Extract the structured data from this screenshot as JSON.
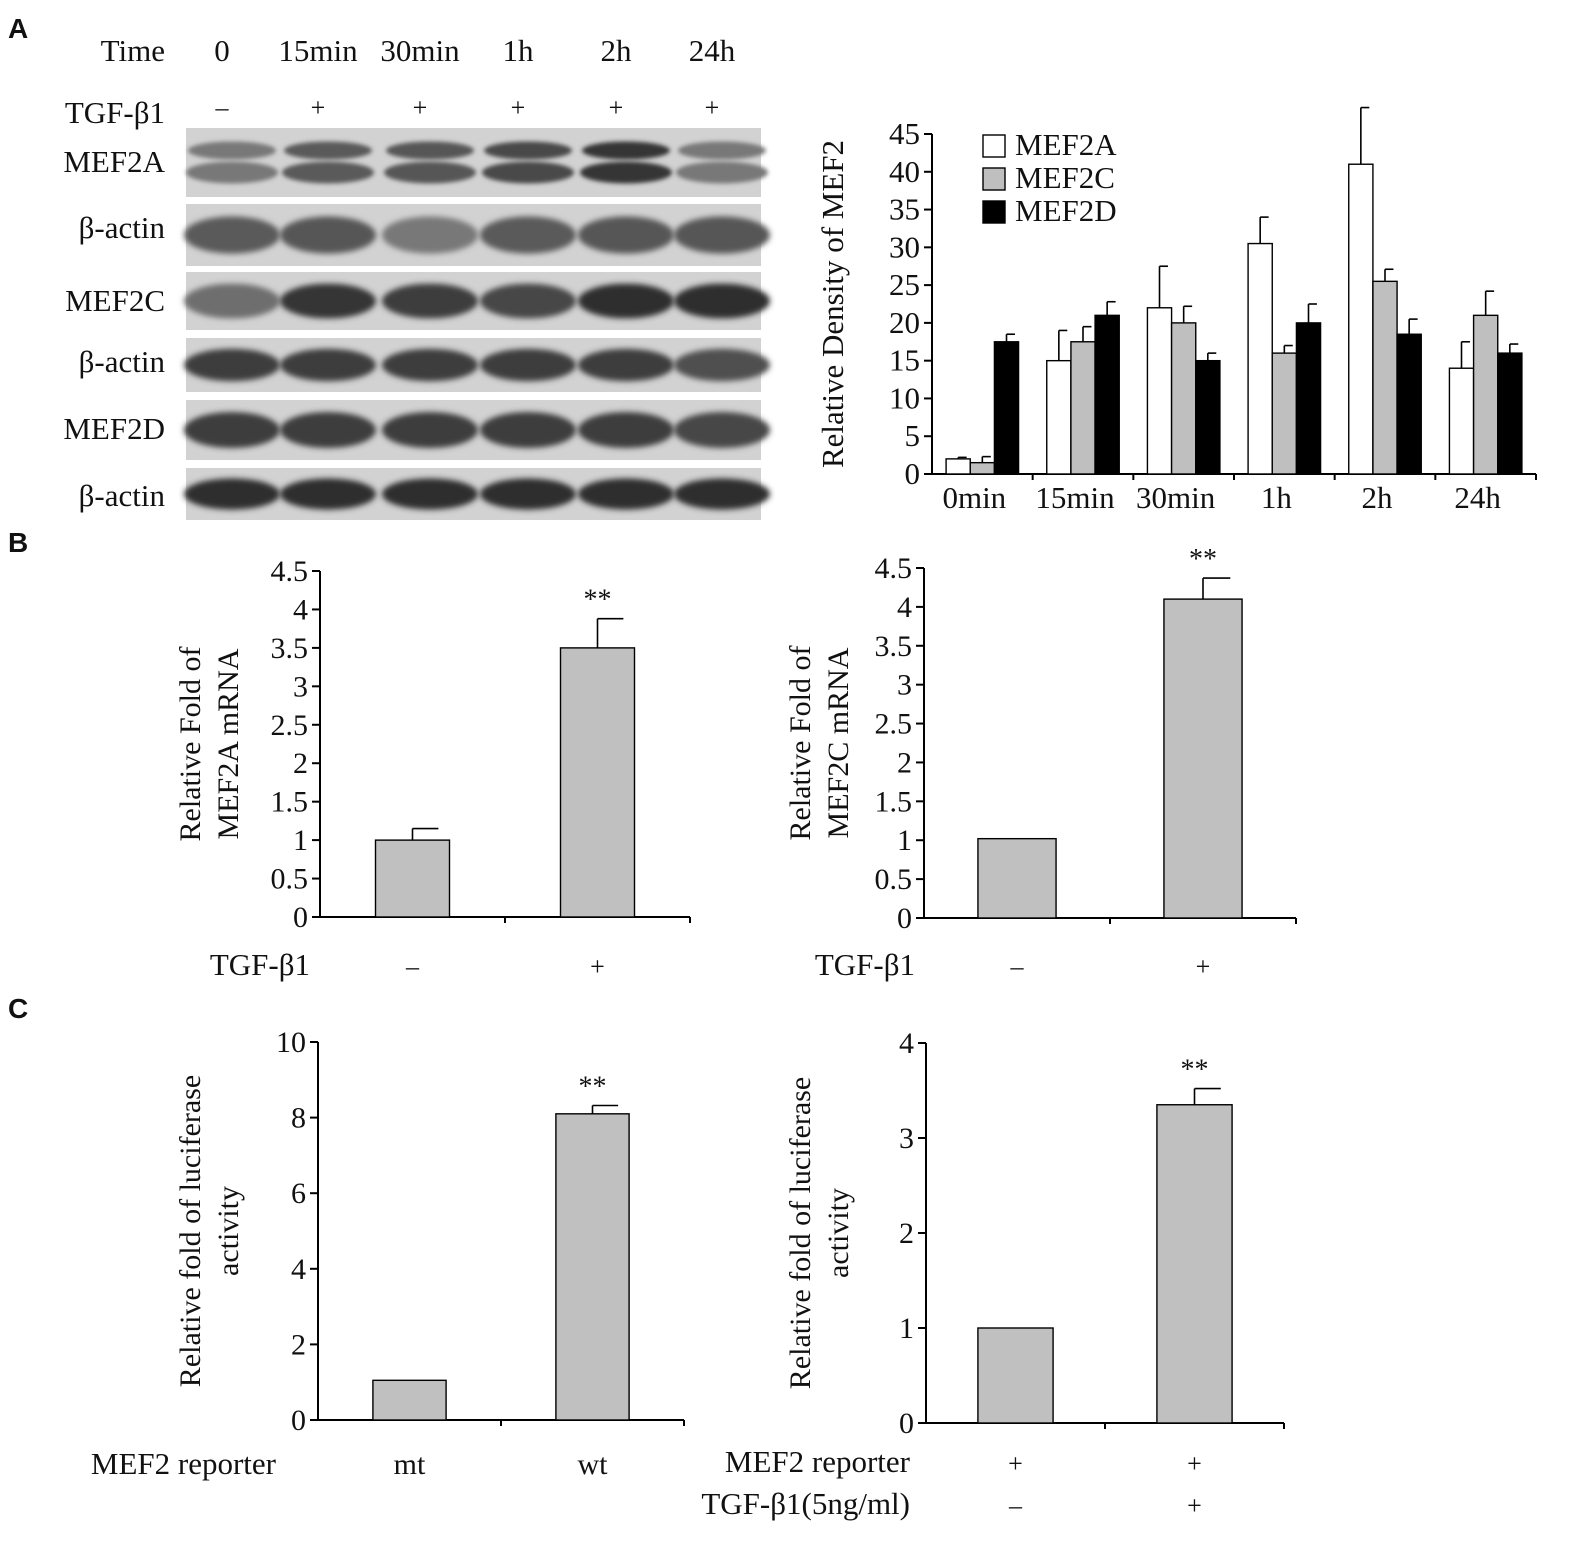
{
  "panels": [
    {
      "id": "A",
      "label": "A"
    },
    {
      "id": "B",
      "label": "B"
    },
    {
      "id": "C",
      "label": "C"
    }
  ],
  "western_blot": {
    "time_label": "Time",
    "treatment_label": "TGF-β1",
    "timepoints": [
      "0",
      "15min",
      "30min",
      "1h",
      "2h",
      "24h"
    ],
    "treatment_signs": [
      "–",
      "+",
      "+",
      "+",
      "+",
      "+"
    ],
    "rows": [
      {
        "label": "MEF2A",
        "bands": "double",
        "intensity": [
          0.55,
          0.7,
          0.72,
          0.78,
          0.88,
          0.55
        ]
      },
      {
        "label": "β-actin",
        "bands": "single",
        "intensity": [
          0.7,
          0.72,
          0.55,
          0.7,
          0.72,
          0.72
        ]
      },
      {
        "label": "MEF2C",
        "bands": "single",
        "intensity": [
          0.6,
          0.88,
          0.85,
          0.8,
          0.92,
          0.92
        ]
      },
      {
        "label": "β-actin",
        "bands": "single",
        "intensity": [
          0.85,
          0.85,
          0.85,
          0.85,
          0.85,
          0.75
        ]
      },
      {
        "label": "MEF2D",
        "bands": "single",
        "intensity": [
          0.85,
          0.85,
          0.85,
          0.85,
          0.85,
          0.8
        ]
      },
      {
        "label": "β-actin",
        "bands": "single",
        "intensity": [
          0.92,
          0.92,
          0.92,
          0.92,
          0.92,
          0.92
        ]
      }
    ]
  },
  "chart_data": [
    {
      "id": "A-right",
      "type": "bar",
      "title": "",
      "xlabel": "",
      "ylabel": "Relative Density  of MEF2",
      "categories": [
        "0min",
        "15min",
        "30min",
        "1h",
        "2h",
        "24h"
      ],
      "ylim": [
        0,
        45
      ],
      "yticks": [
        "0",
        "5",
        "10",
        "15",
        "20",
        "25",
        "30",
        "35",
        "40",
        "45"
      ],
      "legend_position": "top-left",
      "series": [
        {
          "name": "MEF2A",
          "color": "#ffffff",
          "values": [
            2,
            15,
            22,
            30.5,
            41,
            14
          ],
          "errors": [
            0.2,
            4,
            5.5,
            3.5,
            7.5,
            3.5
          ]
        },
        {
          "name": "MEF2C",
          "color": "#bfbfbf",
          "values": [
            1.5,
            17.5,
            20,
            16,
            25.5,
            21
          ],
          "errors": [
            0.8,
            2,
            2.2,
            1,
            1.6,
            3.2
          ]
        },
        {
          "name": "MEF2D",
          "color": "#000000",
          "values": [
            17.5,
            21,
            15,
            20,
            18.5,
            16
          ],
          "errors": [
            1,
            1.8,
            1,
            2.5,
            2,
            1.2
          ]
        }
      ]
    },
    {
      "id": "B-left",
      "type": "bar",
      "title": "",
      "xlabel": "",
      "ylabel": [
        "Relative Fold of",
        "MEF2A mRNA"
      ],
      "row_labels": [
        "TGF-β1"
      ],
      "categories": [
        [
          "–"
        ],
        [
          "+"
        ]
      ],
      "ylim": [
        0,
        4.5
      ],
      "yticks": [
        "0",
        "0.5",
        "1",
        "1.5",
        "2",
        "2.5",
        "3",
        "3.5",
        "4",
        "4.5"
      ],
      "series": [
        {
          "name": "",
          "color": "#c0c0c0",
          "values": [
            1.0,
            3.5
          ],
          "errors": [
            0.15,
            0.38
          ]
        }
      ],
      "annotations": [
        "",
        "**"
      ]
    },
    {
      "id": "B-right",
      "type": "bar",
      "title": "",
      "xlabel": "",
      "ylabel": [
        "Relative Fold of",
        "MEF2C mRNA"
      ],
      "row_labels": [
        "TGF-β1"
      ],
      "categories": [
        [
          "–"
        ],
        [
          "+"
        ]
      ],
      "ylim": [
        0,
        4.5
      ],
      "yticks": [
        "0",
        "0.5",
        "1",
        "1.5",
        "2",
        "2.5",
        "3",
        "3.5",
        "4",
        "4.5"
      ],
      "series": [
        {
          "name": "",
          "color": "#c0c0c0",
          "values": [
            1.02,
            4.1
          ],
          "errors": [
            0,
            0.27
          ]
        }
      ],
      "annotations": [
        "",
        "**"
      ]
    },
    {
      "id": "C-left",
      "type": "bar",
      "title": "",
      "xlabel": "",
      "ylabel": [
        "Relative fold of luciferase",
        "activity"
      ],
      "row_labels": [
        "MEF2 reporter"
      ],
      "categories": [
        [
          "mt"
        ],
        [
          "wt"
        ]
      ],
      "ylim": [
        0,
        10
      ],
      "yticks": [
        "0",
        "2",
        "4",
        "6",
        "8",
        "10"
      ],
      "series": [
        {
          "name": "",
          "color": "#c0c0c0",
          "values": [
            1.05,
            8.1
          ],
          "errors": [
            0,
            0.22
          ]
        }
      ],
      "annotations": [
        "",
        "**"
      ]
    },
    {
      "id": "C-right",
      "type": "bar",
      "title": "",
      "xlabel": "",
      "ylabel": [
        "Relative fold of luciferase",
        "activity"
      ],
      "row_labels": [
        "MEF2 reporter",
        "TGF-β1(5ng/ml)"
      ],
      "categories": [
        [
          "+",
          "–"
        ],
        [
          "+",
          "+"
        ]
      ],
      "ylim": [
        0,
        4
      ],
      "yticks": [
        "0",
        "1",
        "2",
        "3",
        "4"
      ],
      "series": [
        {
          "name": "",
          "color": "#c0c0c0",
          "values": [
            1.0,
            3.35
          ],
          "errors": [
            0,
            0.17
          ]
        }
      ],
      "annotations": [
        "",
        "**"
      ]
    }
  ]
}
